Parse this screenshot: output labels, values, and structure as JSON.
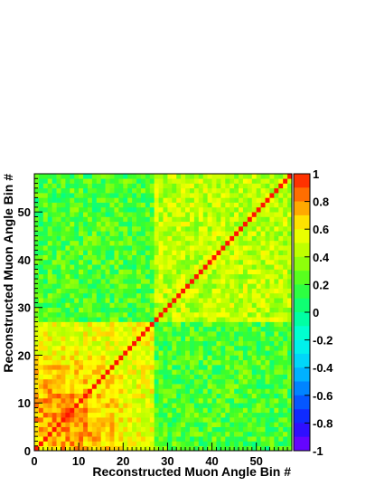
{
  "chart_data": {
    "type": "heatmap",
    "title": "",
    "xlabel": "Reconstructed Muon Angle Bin #",
    "ylabel": "Reconstructed Muon Angle Bin #",
    "nbins": 58,
    "xlim": [
      0,
      58
    ],
    "ylim": [
      0,
      58
    ],
    "x_ticks": [
      0,
      10,
      20,
      30,
      40,
      50
    ],
    "y_ticks": [
      0,
      10,
      20,
      30,
      40,
      50
    ],
    "colorbar": {
      "range": [
        -1,
        1
      ],
      "tick_labels": [
        "1",
        "0.8",
        "0.6",
        "0.4",
        "0.2",
        "0",
        "-0.2",
        "-0.4",
        "-0.6",
        "-0.8",
        "-1"
      ],
      "tick_values": [
        1,
        0.8,
        0.6,
        0.4,
        0.2,
        0,
        -0.2,
        -0.4,
        -0.6,
        -0.8,
        -1
      ]
    },
    "block_boundary_bin": 27,
    "values_description_note": "correlation matrix, diagonal = 1",
    "regions": {
      "diagonal": 1.0,
      "low_low_core": 0.85,
      "low_low_edge": 0.55,
      "high_high": 0.45,
      "cross_block": 0.2
    }
  }
}
